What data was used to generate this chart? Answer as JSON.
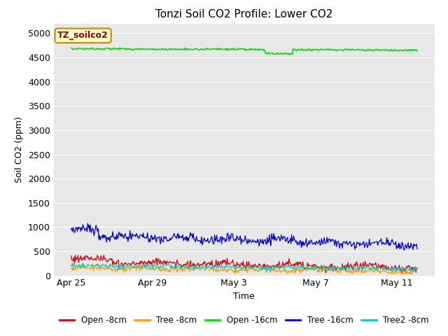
{
  "title": "Tonzi Soil CO2 Profile: Lower CO2",
  "xlabel": "Time",
  "ylabel": "Soil CO2 (ppm)",
  "ylim": [
    0,
    5200
  ],
  "yticks": [
    0,
    500,
    1000,
    1500,
    2000,
    2500,
    3000,
    3500,
    4000,
    4500,
    5000
  ],
  "fig_bg_color": "#ffffff",
  "plot_bg_color": "#e8e8e8",
  "grid_color": "#ffffff",
  "legend_labels": [
    "Open -8cm",
    "Tree -8cm",
    "Open -16cm",
    "Tree -16cm",
    "Tree2 -8cm"
  ],
  "legend_colors": [
    "#dd0000",
    "#ff9900",
    "#00dd00",
    "#0000dd",
    "#00cccc"
  ],
  "watermark_text": "TZ_soilco2",
  "watermark_bg": "#ffffcc",
  "watermark_border": "#cc8800",
  "n_points": 500,
  "x_tick_offsets": [
    0,
    4,
    8,
    12,
    16
  ],
  "x_tick_labels": [
    "Apr 25",
    "Apr 29",
    "May 3",
    "May 7",
    "May 11"
  ],
  "title_fontsize": 11,
  "axis_label_fontsize": 9,
  "tick_fontsize": 9
}
